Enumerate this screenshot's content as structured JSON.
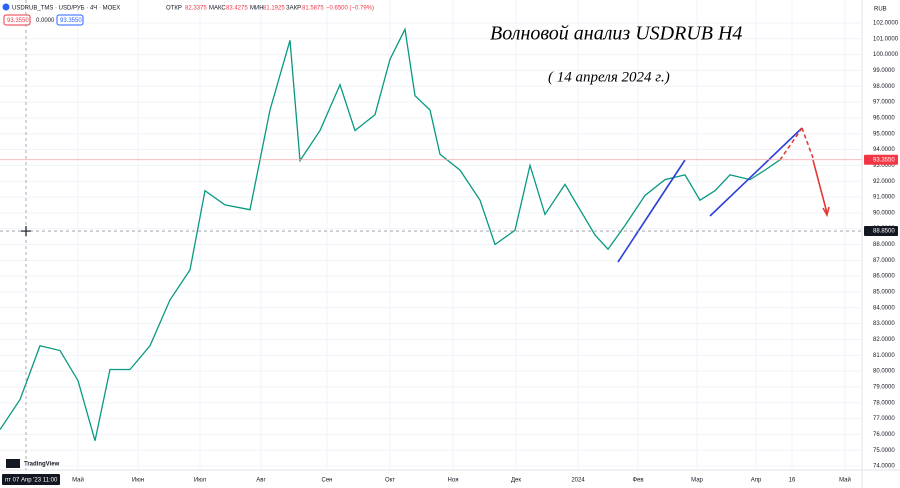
{
  "header": {
    "symbol": "USDRUB_TMS · USD/РУБ · 4Ч · MOEX",
    "open_label": "ОТКР",
    "open": "82.3375",
    "high_label": "МАКС",
    "high": "83.4275",
    "low_label": "МИН",
    "low": "81.1925",
    "close_label": "ЗАКР",
    "close": "81.5875",
    "change": "−0.6500 (−0.79%)",
    "bid": "93.3550",
    "spread": "0.0000",
    "ask": "93.3550",
    "currency": "RUB",
    "brand": "TradingView"
  },
  "chart_data": {
    "type": "line",
    "title": "Волновой анализ USDRUB H4",
    "subtitle": "( 14 апреля 2024 г.)",
    "series": [
      {
        "name": "USDRUB_TMS",
        "color": "#089981",
        "x": [
          0,
          10,
          20,
          30,
          39,
          47.5,
          55,
          65,
          75,
          85,
          95,
          102.5,
          112.5,
          125,
          135,
          145,
          150,
          160,
          170,
          177.5,
          187.5,
          195,
          202.5,
          207.5,
          215,
          220,
          230,
          240,
          247.5,
          257.5,
          265,
          272.5,
          282.5,
          290,
          297.5,
          304,
          312.5,
          322.5,
          332.5,
          342.5,
          350,
          357.5,
          365,
          375,
          382.5,
          390
        ],
        "values": [
          76.3,
          78.2,
          81.6,
          81.3,
          79.4,
          75.6,
          80.1,
          80.1,
          81.6,
          84.5,
          86.4,
          91.4,
          90.5,
          90.2,
          96.5,
          100.9,
          93.3,
          95.2,
          98.1,
          95.2,
          96.2,
          99.7,
          101.6,
          97.4,
          96.5,
          93.7,
          92.7,
          90.8,
          88.0,
          88.9,
          93.0,
          89.9,
          91.8,
          90.2,
          88.6,
          87.7,
          89.2,
          91.1,
          92.1,
          92.4,
          90.8,
          91.4,
          92.4,
          92.1,
          92.7,
          93.35
        ]
      }
    ],
    "xlim": [
      0,
      431
    ],
    "ylim": [
      73.75,
      103.45
    ],
    "xticks": [
      {
        "value": 39,
        "label": "Май"
      },
      {
        "value": 69,
        "label": "Июн"
      },
      {
        "value": 100,
        "label": "Июл"
      },
      {
        "value": 130.5,
        "label": "Авг"
      },
      {
        "value": 163.5,
        "label": "Сен"
      },
      {
        "value": 195,
        "label": "Окт"
      },
      {
        "value": 226.5,
        "label": "Ноя"
      },
      {
        "value": 258,
        "label": "Дек"
      },
      {
        "value": 289,
        "label": "2024"
      },
      {
        "value": 319,
        "label": "Фев"
      },
      {
        "value": 348.5,
        "label": "Мар"
      },
      {
        "value": 378,
        "label": "Апр"
      },
      {
        "value": 396,
        "label": "16"
      },
      {
        "value": 422.5,
        "label": "Май"
      }
    ],
    "yticks": [
      {
        "value": 74,
        "label": "74.0000"
      },
      {
        "value": 75,
        "label": "75.0000"
      },
      {
        "value": 76,
        "label": "76.0000"
      },
      {
        "value": 77,
        "label": "77.0000"
      },
      {
        "value": 78,
        "label": "78.0000"
      },
      {
        "value": 79,
        "label": "79.0000"
      },
      {
        "value": 80,
        "label": "80.0000"
      },
      {
        "value": 81,
        "label": "81.0000"
      },
      {
        "value": 82,
        "label": "82.0000"
      },
      {
        "value": 83,
        "label": "83.0000"
      },
      {
        "value": 84,
        "label": "84.0000"
      },
      {
        "value": 85,
        "label": "85.0000"
      },
      {
        "value": 86,
        "label": "86.0000"
      },
      {
        "value": 87,
        "label": "87.0000"
      },
      {
        "value": 88,
        "label": "88.0000"
      },
      {
        "value": 89,
        "label": "89.0000"
      },
      {
        "value": 90,
        "label": "90.0000"
      },
      {
        "value": 91,
        "label": "91.0000"
      },
      {
        "value": 92,
        "label": "92.0000"
      },
      {
        "value": 93,
        "label": "93.0000"
      },
      {
        "value": 94,
        "label": "94.0000"
      },
      {
        "value": 95,
        "label": "95.0000"
      },
      {
        "value": 96,
        "label": "96.0000"
      },
      {
        "value": 97,
        "label": "97.0000"
      },
      {
        "value": 98,
        "label": "98.0000"
      },
      {
        "value": 99,
        "label": "99.0000"
      },
      {
        "value": 100,
        "label": "100.0000"
      },
      {
        "value": 101,
        "label": "101.0000"
      },
      {
        "value": 102,
        "label": "102.0000"
      }
    ],
    "grid": true,
    "price_line": {
      "value": 93.355,
      "label": "93.3550"
    },
    "crosshair": {
      "value": 88.85,
      "label": "88.8500",
      "x": 13,
      "x_label": "пт 07 Апр '23 11:00"
    }
  }
}
